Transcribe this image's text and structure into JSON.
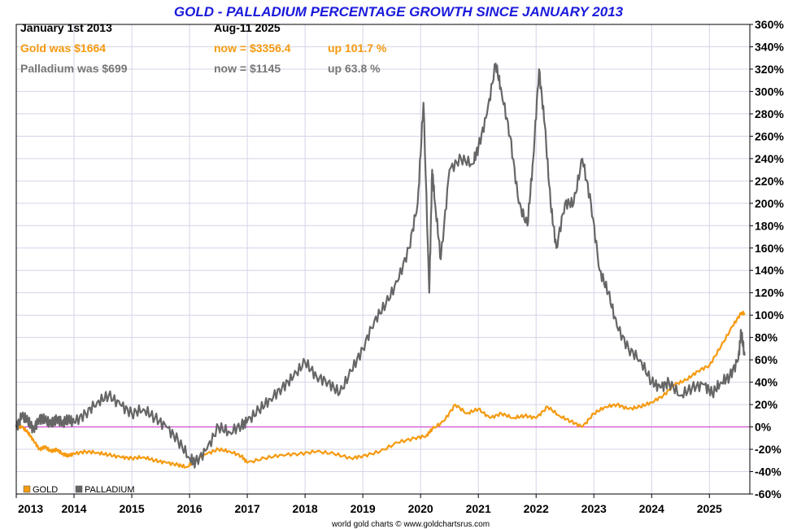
{
  "chart_data": {
    "type": "line",
    "title": "GOLD - PALLADIUM PERCENTAGE GROWTH SINCE JANUARY 2013",
    "xlabel": "",
    "ylabel": "",
    "xlim": [
      2013.0,
      2025.7
    ],
    "ylim": [
      -60,
      360
    ],
    "y_ticks": [
      -60,
      -40,
      -20,
      0,
      20,
      40,
      60,
      80,
      100,
      120,
      140,
      160,
      180,
      200,
      220,
      240,
      260,
      280,
      300,
      320,
      340,
      360
    ],
    "y_tick_labels": [
      "-60%",
      "-40%",
      "-20%",
      "0%",
      "20%",
      "40%",
      "60%",
      "80%",
      "100%",
      "120%",
      "140%",
      "160%",
      "180%",
      "200%",
      "220%",
      "240%",
      "260%",
      "280%",
      "300%",
      "320%",
      "340%",
      "360%"
    ],
    "x_ticks": [
      2013,
      2014,
      2015,
      2016,
      2017,
      2018,
      2019,
      2020,
      2021,
      2022,
      2023,
      2024,
      2025
    ],
    "x_tick_labels": [
      "2013",
      "2014",
      "2015",
      "2016",
      "2017",
      "2018",
      "2019",
      "2020",
      "2021",
      "2022",
      "2023",
      "2024",
      "2025"
    ],
    "grid": true,
    "legend_position": "bottom-left",
    "zero_line_color": "#cc33cc",
    "series": [
      {
        "name": "GOLD",
        "color": "#f59a10",
        "x": [
          2013.0,
          2013.1,
          2013.2,
          2013.3,
          2013.4,
          2013.5,
          2013.6,
          2013.7,
          2013.8,
          2013.9,
          2014.0,
          2014.2,
          2014.4,
          2014.6,
          2014.8,
          2015.0,
          2015.2,
          2015.4,
          2015.6,
          2015.8,
          2015.95,
          2016.1,
          2016.3,
          2016.5,
          2016.7,
          2016.9,
          2017.0,
          2017.3,
          2017.6,
          2017.9,
          2018.2,
          2018.5,
          2018.8,
          2019.0,
          2019.3,
          2019.6,
          2019.9,
          2020.1,
          2020.2,
          2020.4,
          2020.6,
          2020.8,
          2021.0,
          2021.2,
          2021.4,
          2021.6,
          2021.8,
          2022.0,
          2022.2,
          2022.4,
          2022.6,
          2022.8,
          2023.0,
          2023.2,
          2023.4,
          2023.6,
          2023.8,
          2024.0,
          2024.2,
          2024.4,
          2024.6,
          2024.8,
          2025.0,
          2025.2,
          2025.4,
          2025.55,
          2025.61
        ],
        "values": [
          0,
          0,
          -5,
          -12,
          -20,
          -18,
          -22,
          -20,
          -24,
          -26,
          -24,
          -22,
          -23,
          -25,
          -27,
          -28,
          -27,
          -30,
          -32,
          -34,
          -36,
          -30,
          -24,
          -20,
          -22,
          -26,
          -32,
          -28,
          -25,
          -24,
          -22,
          -24,
          -28,
          -26,
          -22,
          -14,
          -10,
          -8,
          -2,
          5,
          20,
          12,
          16,
          8,
          12,
          8,
          10,
          8,
          18,
          10,
          5,
          0,
          12,
          18,
          20,
          16,
          18,
          22,
          28,
          38,
          42,
          50,
          55,
          72,
          90,
          102,
          101.7
        ]
      },
      {
        "name": "PALLADIUM",
        "color": "#666666",
        "x": [
          2013.0,
          2013.1,
          2013.2,
          2013.3,
          2013.4,
          2013.5,
          2013.6,
          2013.7,
          2013.8,
          2013.9,
          2014.0,
          2014.2,
          2014.4,
          2014.6,
          2014.8,
          2015.0,
          2015.2,
          2015.4,
          2015.6,
          2015.8,
          2016.0,
          2016.1,
          2016.3,
          2016.5,
          2016.7,
          2016.9,
          2017.0,
          2017.2,
          2017.4,
          2017.6,
          2017.8,
          2018.0,
          2018.2,
          2018.4,
          2018.6,
          2018.8,
          2019.0,
          2019.2,
          2019.4,
          2019.6,
          2019.8,
          2019.95,
          2020.05,
          2020.15,
          2020.2,
          2020.25,
          2020.35,
          2020.5,
          2020.7,
          2020.9,
          2021.0,
          2021.15,
          2021.3,
          2021.4,
          2021.55,
          2021.7,
          2021.85,
          2021.95,
          2022.05,
          2022.15,
          2022.25,
          2022.35,
          2022.5,
          2022.65,
          2022.8,
          2022.95,
          2023.1,
          2023.25,
          2023.4,
          2023.6,
          2023.8,
          2024.0,
          2024.15,
          2024.3,
          2024.5,
          2024.7,
          2024.9,
          2025.05,
          2025.2,
          2025.35,
          2025.5,
          2025.55,
          2025.61
        ],
        "values": [
          0,
          10,
          5,
          -2,
          8,
          6,
          2,
          8,
          4,
          6,
          4,
          12,
          22,
          28,
          20,
          12,
          16,
          8,
          0,
          -12,
          -28,
          -32,
          -20,
          0,
          -5,
          2,
          5,
          15,
          25,
          35,
          45,
          58,
          45,
          40,
          30,
          50,
          70,
          95,
          110,
          130,
          160,
          200,
          290,
          120,
          230,
          200,
          150,
          230,
          240,
          235,
          250,
          280,
          325,
          300,
          260,
          200,
          180,
          240,
          320,
          270,
          200,
          160,
          200,
          200,
          240,
          200,
          140,
          120,
          90,
          70,
          60,
          40,
          35,
          40,
          28,
          35,
          38,
          30,
          40,
          45,
          60,
          85,
          63.8
        ]
      }
    ],
    "annotations": {
      "start_date": "January 1st 2013",
      "end_date": "Aug-11  2025",
      "gold_start": "Gold was $1664",
      "gold_now": "now = $3356.4",
      "gold_change": "up 101.7 %",
      "palladium_start": "Palladium was $699",
      "palladium_now": "now = $1145",
      "palladium_change": "up 63.8 %"
    },
    "legend": [
      "GOLD",
      "PALLADIUM"
    ],
    "credit": "world gold charts © www.goldchartsrus.com"
  }
}
